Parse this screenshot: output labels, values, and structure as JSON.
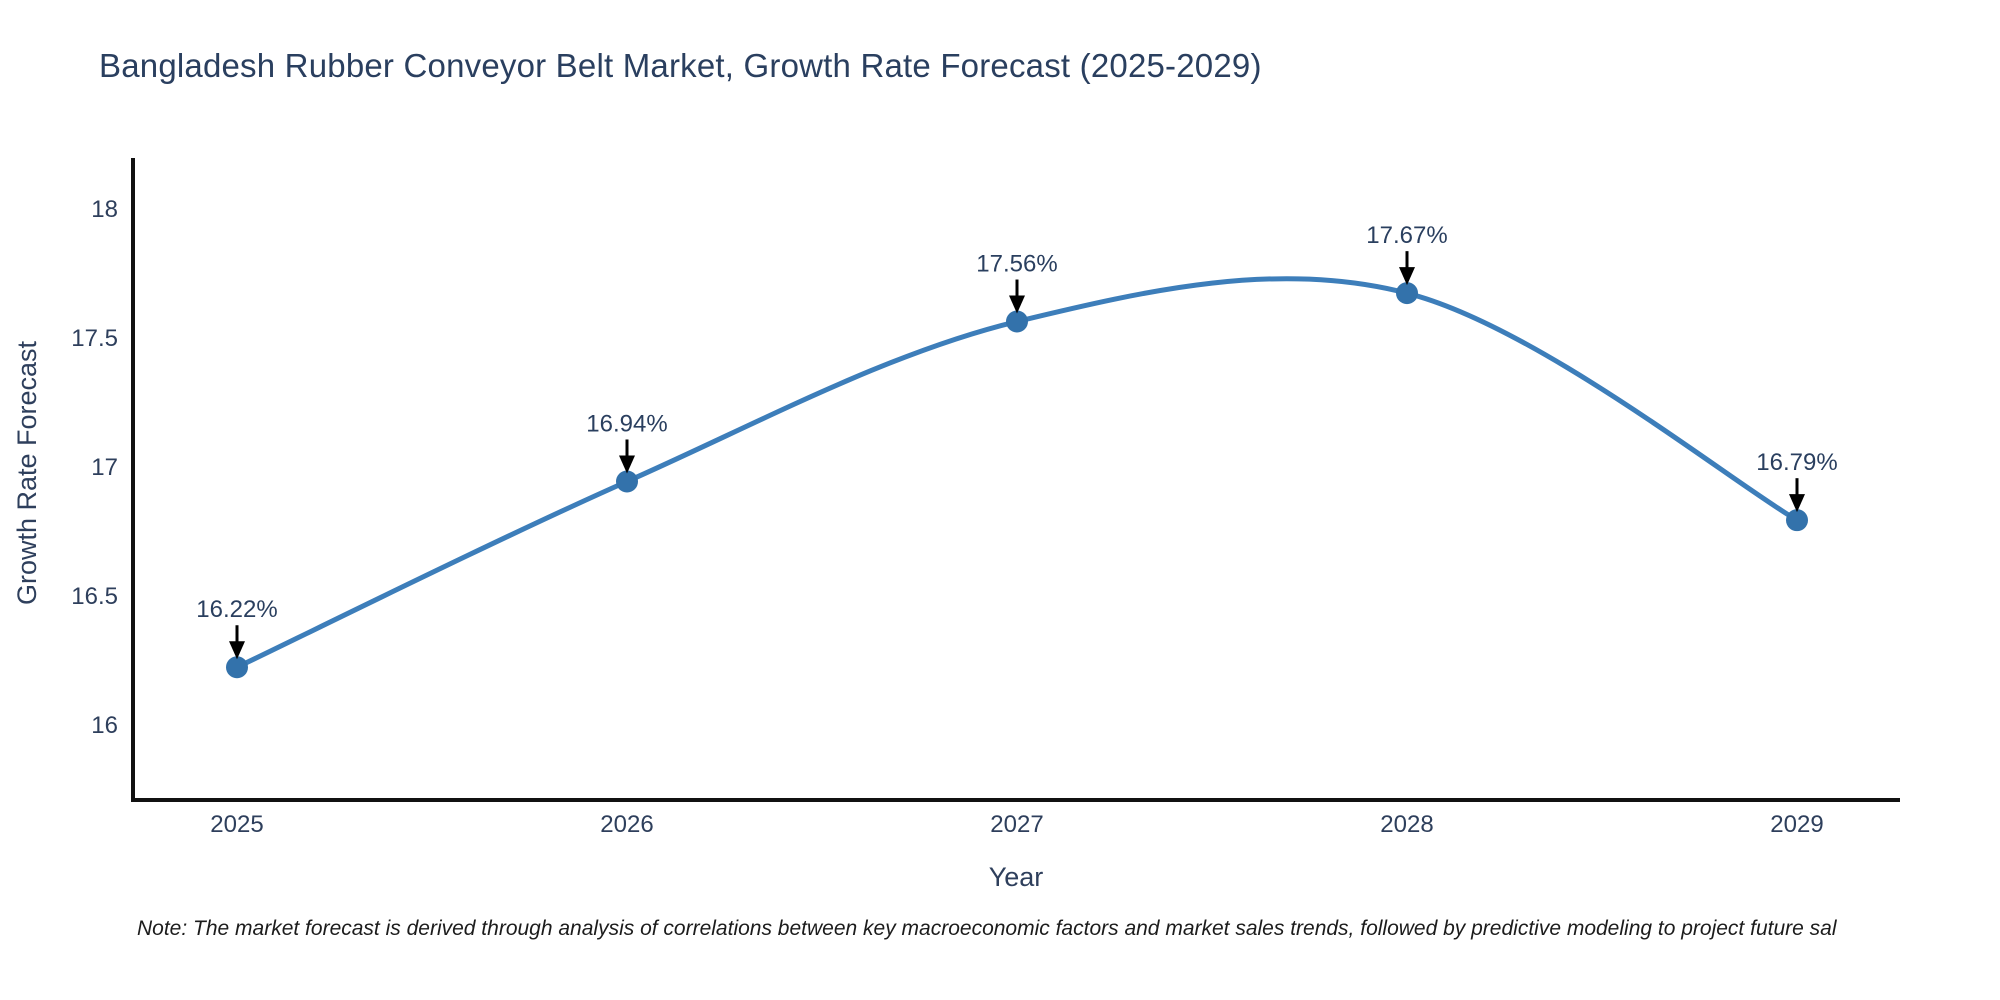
{
  "chart_data": {
    "type": "line",
    "line_shape": "spline",
    "title": "Bangladesh Rubber Conveyor Belt Market, Growth Rate Forecast (2025-2029)",
    "xlabel": "Year",
    "ylabel": "Growth Rate Forecast",
    "x": [
      2025,
      2026,
      2027,
      2028,
      2029
    ],
    "x_tick_labels": [
      "2025",
      "2026",
      "2027",
      "2028",
      "2029"
    ],
    "series": [
      {
        "name": "Growth Rate Forecast",
        "values": [
          16.22,
          16.94,
          17.56,
          17.67,
          16.79
        ]
      }
    ],
    "point_labels": [
      "16.22%",
      "16.94%",
      "17.56%",
      "17.67%",
      "16.79%"
    ],
    "y_ticks": [
      16,
      16.5,
      17,
      17.5,
      18
    ],
    "y_tick_labels": [
      "16",
      "16.5",
      "17",
      "17.5",
      "18"
    ],
    "ylim": [
      15.7,
      18.2
    ],
    "grid": false,
    "legend_position": "none",
    "annotation_arrow": "down-arrow-icon",
    "colors": {
      "line": "#3d7eba",
      "marker": "#3372ab",
      "axis": "#111111",
      "text": "#2a3f5f",
      "annotation_arrow": "#000000",
      "background": "#ffffff"
    }
  },
  "note": {
    "text": "Note: The market forecast is derived through analysis of correlations between key macroeconomic factors and market sales trends, followed by predictive modeling to project future sal"
  }
}
